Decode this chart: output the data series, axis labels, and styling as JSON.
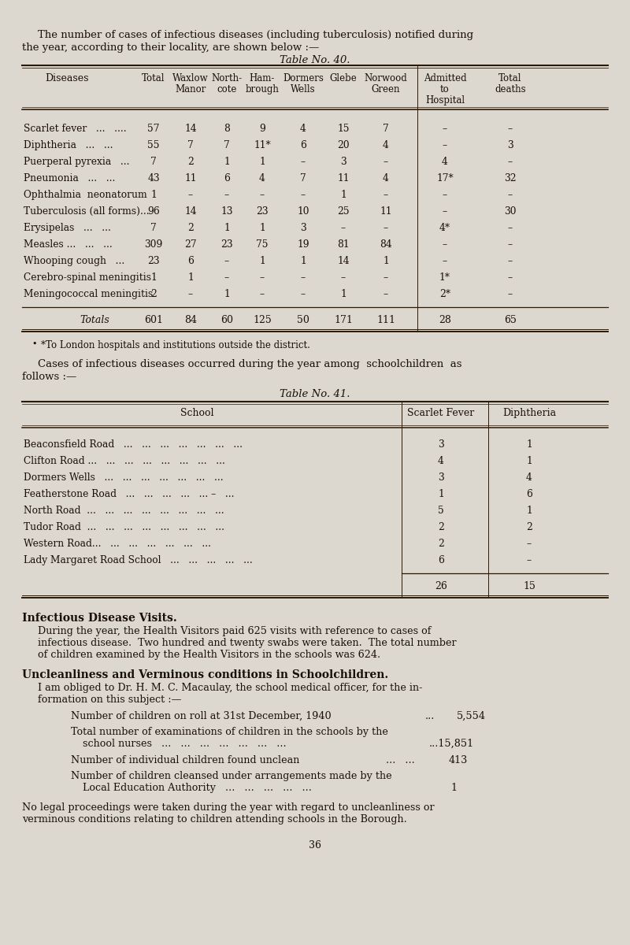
{
  "bg_color": "#dcd8cf",
  "text_color": "#1a1008",
  "line_color": "#2a1a08",
  "intro_text_line1": "The number of cases of infectious diseases (including tuberculosis) notified during",
  "intro_text_line2": "the year, according to their locality, are shown below :—",
  "table40_title": "Table No. 40.",
  "table40_col_headers_line1": [
    "Diseases",
    "Total",
    "Waxlow",
    "North-",
    "Ham-",
    "Dormers",
    "Glebe",
    "Norwood",
    "Admitted",
    "Total"
  ],
  "table40_col_headers_line2": [
    "",
    "",
    "Manor",
    "cote",
    "brough",
    "Wells",
    "",
    "Green",
    "to",
    "deaths"
  ],
  "table40_col_headers_line3": [
    "",
    "",
    "",
    "",
    "",
    "",
    "",
    "",
    "Hospital",
    ""
  ],
  "table40_rows": [
    [
      "Scarlet fever   ...   ....",
      "57",
      "14",
      "8",
      "9",
      "4",
      "15",
      "7",
      "–",
      "–"
    ],
    [
      "Diphtheria   ...   ...",
      "55",
      "7",
      "7",
      "11*",
      "6",
      "20",
      "4",
      "–",
      "3"
    ],
    [
      "Puerperal pyrexia   ...",
      "7",
      "2",
      "1",
      "1",
      "–",
      "3",
      "–",
      "4",
      "–"
    ],
    [
      "Pneumonia   ...   ...",
      "43",
      "11",
      "6",
      "4",
      "7",
      "11",
      "4",
      "17*",
      "32"
    ],
    [
      "Ophthalmia  neonatorum",
      "1",
      "–",
      "–",
      "–",
      "–",
      "1",
      "–",
      "–",
      "–"
    ],
    [
      "Tuberculosis (all forms)...",
      "96",
      "14",
      "13",
      "23",
      "10",
      "25",
      "11",
      "–",
      "30"
    ],
    [
      "Erysipelas   ...   ...",
      "7",
      "2",
      "1",
      "1",
      "3",
      "–",
      "–",
      "4*",
      "–"
    ],
    [
      "Measles ...   ...   ...",
      "309",
      "27",
      "23",
      "75",
      "19",
      "81",
      "84",
      "–",
      "–"
    ],
    [
      "Whooping cough   ...",
      "23",
      "6",
      "–",
      "1",
      "1",
      "14",
      "1",
      "–",
      "–"
    ],
    [
      "Cerebro-spinal meningitis",
      "1",
      "1",
      "–",
      "–",
      "–",
      "–",
      "–",
      "1*",
      "–"
    ],
    [
      "Meningococcal meningitis",
      "2",
      "–",
      "1",
      "–",
      "–",
      "1",
      "–",
      "2*",
      "–"
    ]
  ],
  "table40_totals": [
    "Totals",
    "601",
    "84",
    "60",
    "125",
    "50",
    "171",
    "111",
    "28",
    "65"
  ],
  "table40_footnote": "*To London hospitals and institutions outside the district.",
  "table41_intro_line1": "Cases of infectious diseases occurred during the year among  schoolchildren  as",
  "table41_intro_line2": "follows :—",
  "table41_title": "Table No. 41.",
  "table41_rows": [
    [
      "Beaconsfield Road   ...   ...   ...   ...   ...   ...   ...",
      "3",
      "1"
    ],
    [
      "Clifton Road ...   ...   ...   ...   ...   ...   ...   ...",
      "4",
      "1"
    ],
    [
      "Dormers Wells   ...   ...   ...   ...   ...   ...   ...",
      "3",
      "4"
    ],
    [
      "Featherstone Road   ...   ...   ...   ...   ... –   ...",
      "1",
      "6"
    ],
    [
      "North Road  ...   ...   ...   ...   ...   ...   ...   ...",
      "5",
      "1"
    ],
    [
      "Tudor Road  ...   ...   ...   ...   ...   ...   ...   ...",
      "2",
      "2"
    ],
    [
      "Western Road...   ...   ...   ...   ...   ...   ...",
      "2",
      "–"
    ],
    [
      "Lady Margaret Road School   ...   ...   ...   ...   ...",
      "6",
      "–"
    ]
  ],
  "table41_totals": [
    "26",
    "15"
  ],
  "idv_heading": "Infectious Disease Visits.",
  "idv_para": "During the year, the Health Visitors paid 625 visits with reference to cases of\ninfectious disease.  Two hundred and twenty swabs were taken.  The total number\nof children examined by the Health Visitors in the schools was 624.",
  "unc_heading": "Uncleanliness and Verminous conditions in Schoolchildren.",
  "unc_intro": "I am obliged to Dr. H. M. C. Macaulay, the school medical officer, for the in-\nformation on this subject :—",
  "stat1_label": "Number of children on roll at 31st December, 1940",
  "stat1_dots": "...",
  "stat1_val": "5,554",
  "stat2_label": "Total number of examinations of children in the schools by the",
  "stat2_label2": "school nurses   ...   ...   ...   ...   ...   ...   ...",
  "stat2_val": "...15,851",
  "stat3_label": "Number of individual children found unclean",
  "stat3_dots": "...   ...",
  "stat3_val": "413",
  "stat4_label": "Number of children cleansed under arrangements made by the",
  "stat4_label2": "Local Education Authority   ...   ...   ...   ...   ...",
  "stat4_val": "1",
  "final_text": "No legal proceedings were taken during the year with regard to uncleanliness or\nverminous conditions relating to children attending schools in the Borough.",
  "page_number": "36"
}
